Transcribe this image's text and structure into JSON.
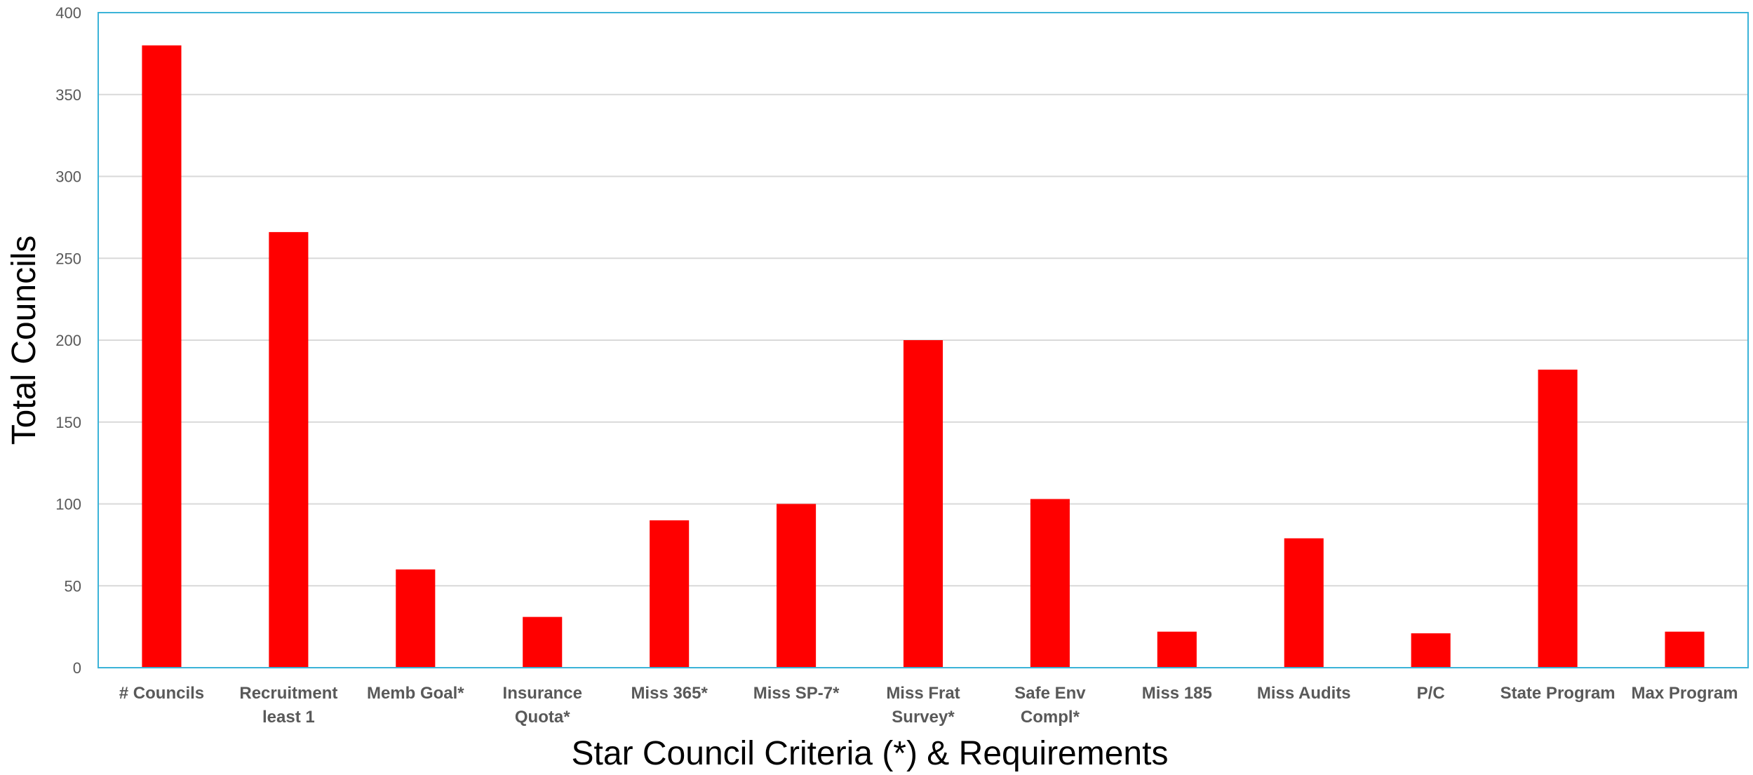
{
  "chart_data": {
    "type": "bar",
    "title": "",
    "xlabel": "Star Council Criteria (*) & Requirements",
    "ylabel": "Total Councils",
    "ylim": [
      0,
      400
    ],
    "yticks": [
      "0",
      "50",
      "100",
      "150",
      "200",
      "250",
      "300",
      "350",
      "400"
    ],
    "grid": true,
    "legend": "none",
    "categories": [
      [
        "# Councils"
      ],
      [
        "Recruitment",
        "least 1"
      ],
      [
        "Memb Goal*"
      ],
      [
        "Insurance",
        "Quota*"
      ],
      [
        "Miss 365*"
      ],
      [
        "Miss SP-7*"
      ],
      [
        "Miss Frat",
        "Survey*"
      ],
      [
        "Safe Env",
        "Compl*"
      ],
      [
        "Miss 185"
      ],
      [
        "Miss Audits"
      ],
      [
        "P/C"
      ],
      [
        "State Program"
      ],
      [
        "Max Program"
      ]
    ],
    "values": [
      380,
      266,
      60,
      31,
      90,
      100,
      200,
      103,
      22,
      79,
      21,
      182,
      22
    ],
    "colors": {
      "bar": "#ff0000",
      "frame": "#3bb3d8",
      "grid": "#d9d9d9",
      "tick_text": "#595959",
      "title_text": "#000000"
    }
  }
}
